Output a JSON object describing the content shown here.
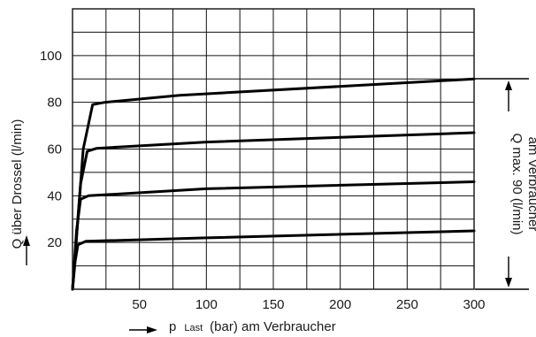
{
  "chart_data": {
    "type": "line",
    "xlabel_main": "p",
    "xlabel_sub": "Last",
    "xlabel_rest": "(bar) am Verbraucher",
    "ylabel": "Q über Drossel (l/min)",
    "right_label_line1": "Q max. 90 (l/min)",
    "right_label_line2": "am Verbraucher",
    "xlim": [
      0,
      300
    ],
    "ylim": [
      0,
      120
    ],
    "x_ticks": [
      50,
      100,
      150,
      200,
      250,
      300
    ],
    "y_ticks": [
      20,
      40,
      60,
      80,
      100
    ],
    "x_tick_labels": [
      "50",
      "100",
      "150",
      "200",
      "250",
      "300"
    ],
    "y_tick_labels": [
      "20",
      "40",
      "60",
      "80",
      "100"
    ],
    "grid": true,
    "series": [
      {
        "points": [
          [
            0,
            0
          ],
          [
            2,
            12
          ],
          [
            4,
            19
          ],
          [
            10,
            20.5
          ],
          [
            100,
            22
          ],
          [
            300,
            25
          ]
        ]
      },
      {
        "points": [
          [
            0,
            0
          ],
          [
            3,
            25
          ],
          [
            6,
            38.5
          ],
          [
            12,
            40
          ],
          [
            100,
            43
          ],
          [
            300,
            46
          ]
        ]
      },
      {
        "points": [
          [
            0,
            0
          ],
          [
            6,
            45
          ],
          [
            11,
            59
          ],
          [
            18,
            60.3
          ],
          [
            100,
            63
          ],
          [
            300,
            67
          ]
        ]
      },
      {
        "points": [
          [
            0,
            0
          ],
          [
            8,
            60
          ],
          [
            15,
            79
          ],
          [
            24,
            80
          ],
          [
            80,
            83
          ],
          [
            300,
            90
          ]
        ]
      }
    ]
  }
}
